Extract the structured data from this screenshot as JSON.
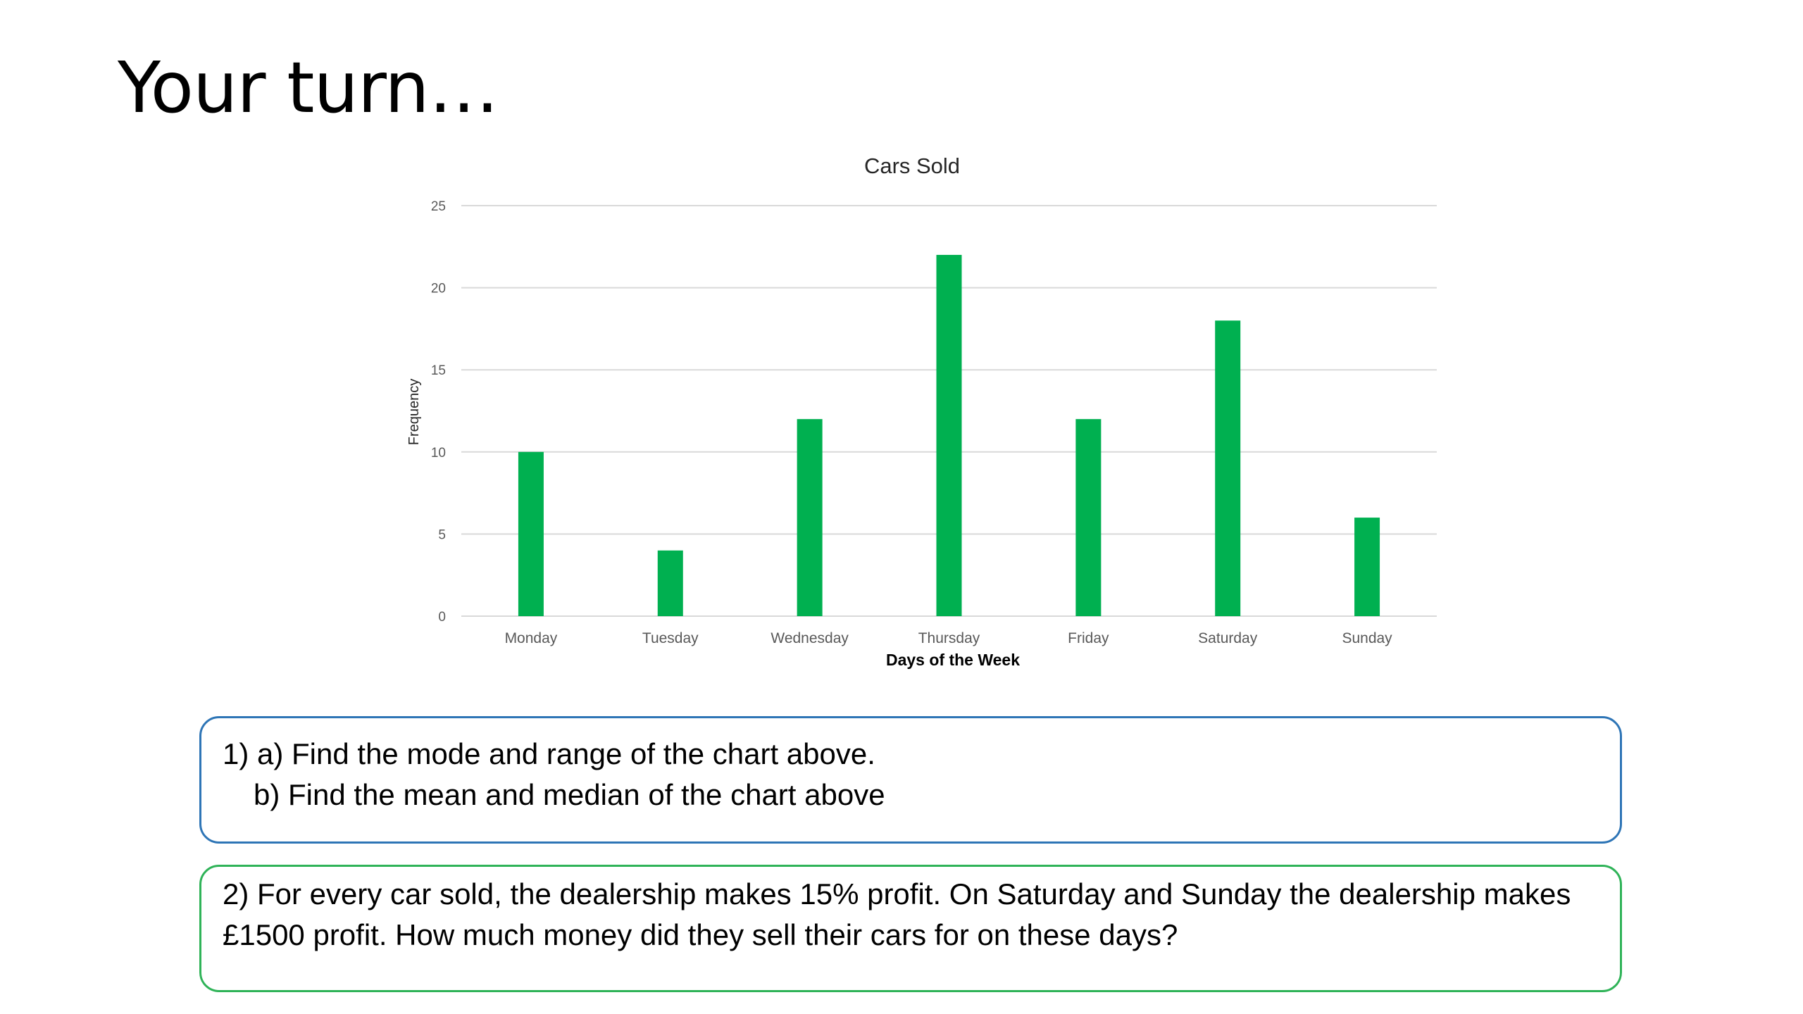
{
  "slide": {
    "title": "Your turn…"
  },
  "chart_data": {
    "type": "bar",
    "title": "Cars Sold",
    "xlabel": "Days of the Week",
    "ylabel": "Frequency",
    "categories": [
      "Monday",
      "Tuesday",
      "Wednesday",
      "Thursday",
      "Friday",
      "Saturday",
      "Sunday"
    ],
    "values": [
      10,
      4,
      12,
      22,
      12,
      18,
      6
    ],
    "ylim": [
      0,
      25
    ],
    "yticks": [
      0,
      5,
      10,
      15,
      20,
      25
    ],
    "grid": true,
    "bar_color": "#00b050",
    "grid_color": "#d9d9d9"
  },
  "questions": {
    "q1_line1": "1) a) Find the mode and range of the chart above.",
    "q1_line2": "b) Find the mean and median of the chart above",
    "q2_text": "2) For every car sold, the dealership makes 15% profit. On Saturday and Sunday the dealership makes £1500 profit. How much money did they sell their cars for on these days?"
  },
  "colors": {
    "q1_border": "#2e75b6",
    "q2_border": "#2fb358"
  }
}
